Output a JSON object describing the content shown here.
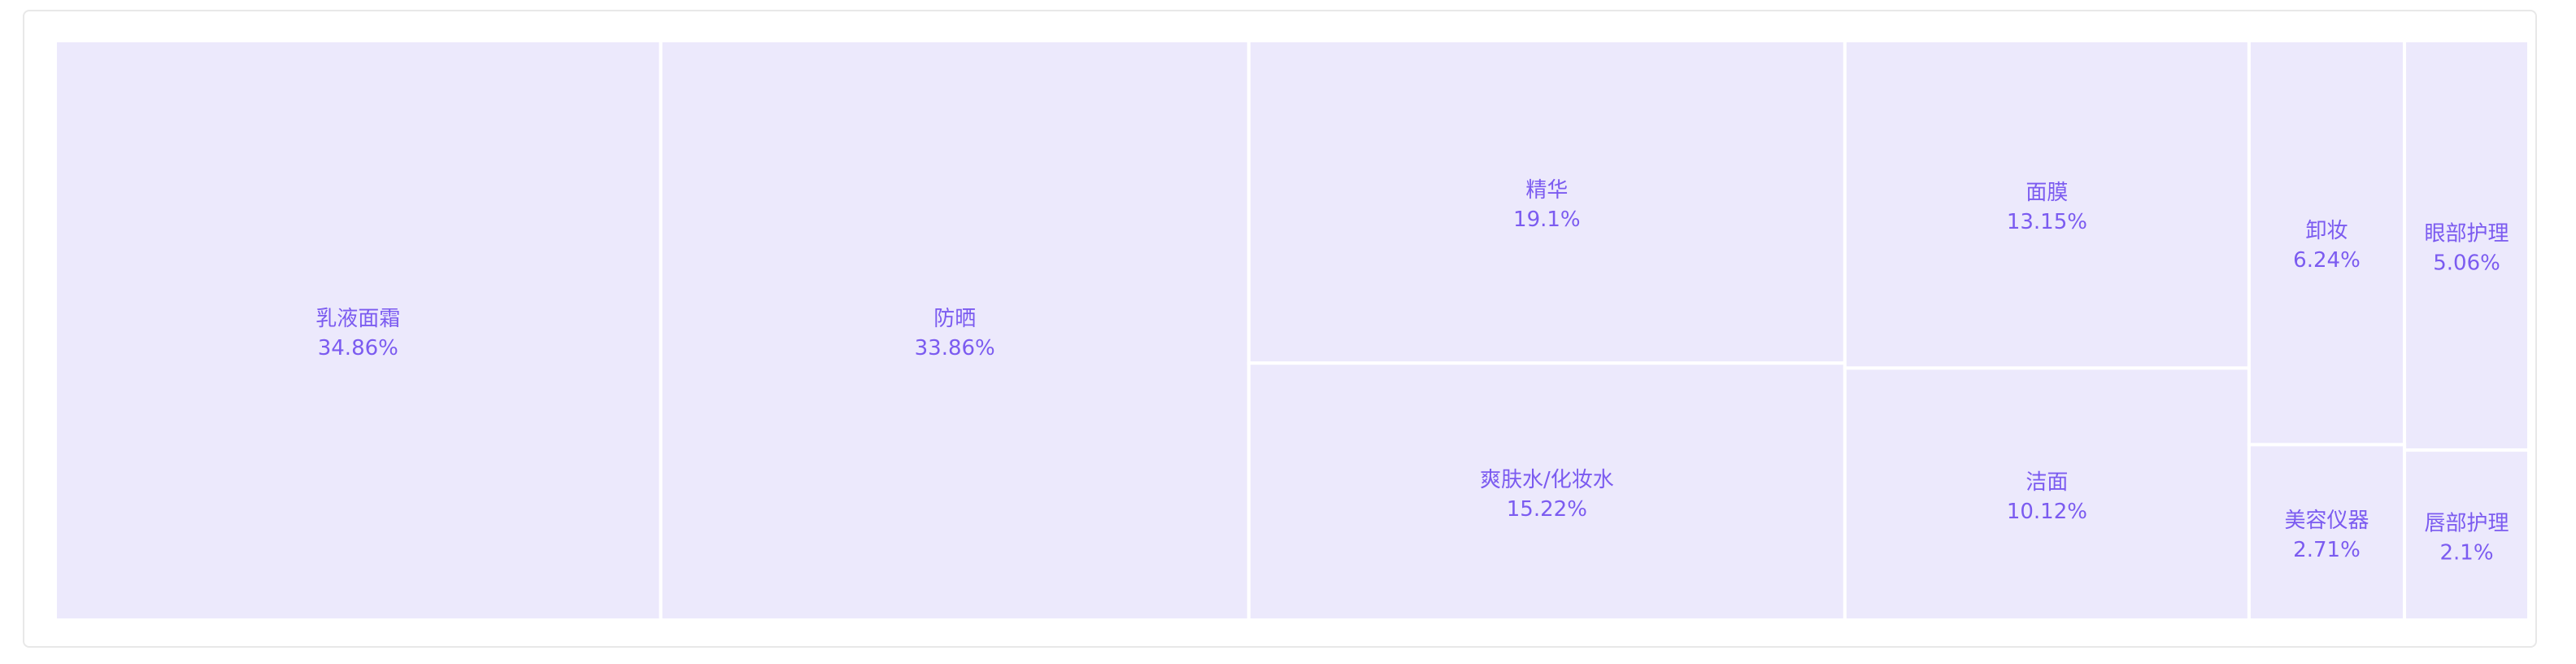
{
  "chart_data": {
    "type": "treemap",
    "colors": {
      "fill": "#ece9fc",
      "text": "#7b5bf0",
      "border": "#ffffff"
    },
    "items": [
      {
        "name": "乳液面霜",
        "value": 34.86,
        "label": "34.86%"
      },
      {
        "name": "防晒",
        "value": 33.86,
        "label": "33.86%"
      },
      {
        "name": "精华",
        "value": 19.1,
        "label": "19.1%"
      },
      {
        "name": "爽肤水/化妆水",
        "value": 15.22,
        "label": "15.22%"
      },
      {
        "name": "面膜",
        "value": 13.15,
        "label": "13.15%"
      },
      {
        "name": "洁面",
        "value": 10.12,
        "label": "10.12%"
      },
      {
        "name": "卸妆",
        "value": 6.24,
        "label": "6.24%"
      },
      {
        "name": "眼部护理",
        "value": 5.06,
        "label": "5.06%"
      },
      {
        "name": "美容仪器",
        "value": 2.71,
        "label": "2.71%"
      },
      {
        "name": "唇部护理",
        "value": 2.1,
        "label": "2.1%"
      }
    ]
  }
}
